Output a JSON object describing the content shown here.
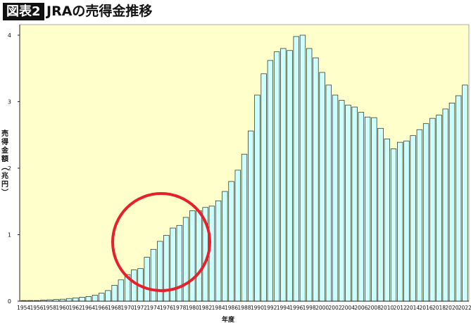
{
  "header": {
    "badge": "図表2",
    "title": "JRAの売得金推移"
  },
  "chart_data": {
    "type": "bar",
    "title": "JRAの売得金推移",
    "xlabel": "年度",
    "ylabel": "売得金額(兆円)",
    "ylim": [
      0,
      4.2
    ],
    "yticks": [
      0,
      1,
      2,
      3,
      4
    ],
    "grid": false,
    "colors": {
      "plot_bg": "#ffffcc",
      "bar_fill": "#ccffff",
      "bar_stroke": "#222222",
      "highlight_circle": "#e8202a"
    },
    "categories": [
      1954,
      1955,
      1956,
      1957,
      1958,
      1959,
      1960,
      1961,
      1962,
      1963,
      1964,
      1965,
      1966,
      1967,
      1968,
      1969,
      1970,
      1971,
      1972,
      1973,
      1974,
      1975,
      1976,
      1977,
      1978,
      1979,
      1980,
      1981,
      1982,
      1983,
      1984,
      1985,
      1986,
      1987,
      1988,
      1989,
      1990,
      1991,
      1992,
      1993,
      1994,
      1995,
      1996,
      1997,
      1998,
      1999,
      2000,
      2001,
      2002,
      2003,
      2004,
      2005,
      2006,
      2007,
      2008,
      2009,
      2010,
      2011,
      2012,
      2013,
      2014,
      2015,
      2016,
      2017,
      2018,
      2019,
      2020,
      2021,
      2022
    ],
    "tick_labels": [
      "1954",
      "1956",
      "1958",
      "1960",
      "1962",
      "1964",
      "1966",
      "1968",
      "1970",
      "1972",
      "1974",
      "1976",
      "1978",
      "1980",
      "1982",
      "1984",
      "1986",
      "1988",
      "1990",
      "1992",
      "1994",
      "1996",
      "1998",
      "2000",
      "2002",
      "2004",
      "2006",
      "2008",
      "2010",
      "2012",
      "2014",
      "2016",
      "2018",
      "2020",
      "2022"
    ],
    "values": [
      0.01,
      0.01,
      0.01,
      0.015,
      0.02,
      0.025,
      0.03,
      0.04,
      0.05,
      0.06,
      0.07,
      0.09,
      0.12,
      0.16,
      0.24,
      0.32,
      0.4,
      0.47,
      0.49,
      0.66,
      0.78,
      0.9,
      0.99,
      1.1,
      1.14,
      1.26,
      1.36,
      1.36,
      1.41,
      1.43,
      1.51,
      1.65,
      1.8,
      1.97,
      2.21,
      2.56,
      3.1,
      3.42,
      3.62,
      3.75,
      3.8,
      3.77,
      3.98,
      4.0,
      3.8,
      3.66,
      3.44,
      3.25,
      3.1,
      3.02,
      2.95,
      2.92,
      2.84,
      2.77,
      2.76,
      2.6,
      2.44,
      2.29,
      2.39,
      2.41,
      2.49,
      2.58,
      2.67,
      2.75,
      2.8,
      2.89,
      2.98,
      3.09,
      3.25
    ]
  }
}
